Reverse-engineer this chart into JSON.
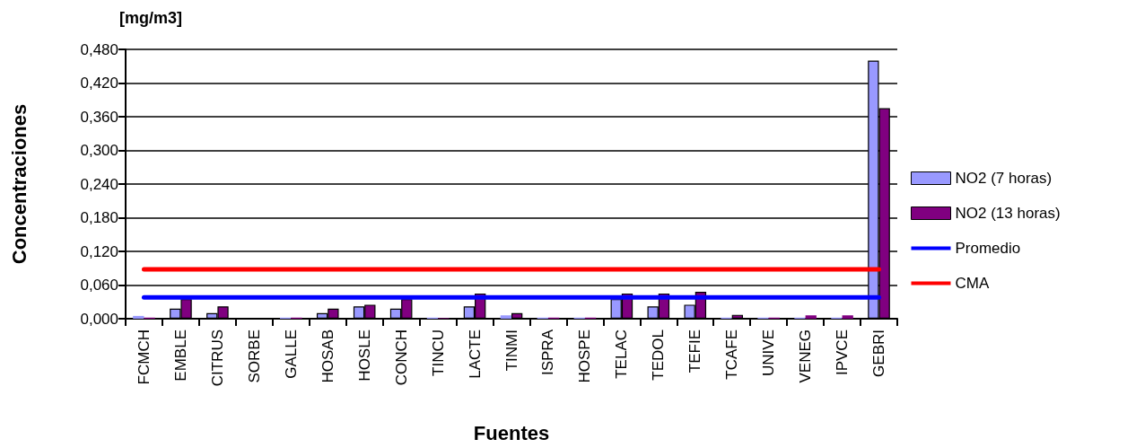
{
  "chart_data": {
    "type": "bar",
    "ylabel": "Concentraciones",
    "xlabel": "Fuentes",
    "annotations": [
      "[mg/m3]"
    ],
    "categories": [
      "FCMCH",
      "EMBLE",
      "CITRUS",
      "SORBE",
      "GALLE",
      "HOSAB",
      "HOSLE",
      "CONCH",
      "TINCU",
      "LACTE",
      "TINMI",
      "ISPRA",
      "HOSPE",
      "TELAC",
      "TEDOL",
      "TEFIE",
      "TCAFE",
      "UNIVE",
      "VENEG",
      "IPVCE",
      "GEBRI"
    ],
    "series": [
      {
        "name": "NO2 (7 horas)",
        "color": "#9999ff",
        "values": [
          0.005,
          0.018,
          0.01,
          0,
          0.002,
          0.01,
          0.022,
          0.018,
          0.002,
          0.022,
          0.006,
          0.002,
          0.002,
          0.035,
          0.022,
          0.025,
          0.002,
          0.002,
          0.002,
          0.002,
          0.46
        ]
      },
      {
        "name": "NO2 (13 horas)",
        "color": "#800080",
        "values": [
          0.002,
          0.035,
          0.022,
          0,
          0.002,
          0.018,
          0.025,
          0.035,
          0.001,
          0.045,
          0.01,
          0.002,
          0.002,
          0.045,
          0.045,
          0.048,
          0.007,
          0.002,
          0.006,
          0.006,
          0.375
        ]
      },
      {
        "name": "Promedio",
        "type": "line",
        "color": "#0000ff",
        "values": [
          0.038,
          0.038,
          0.038,
          0.038,
          0.038,
          0.038,
          0.038,
          0.038,
          0.038,
          0.038,
          0.038,
          0.038,
          0.038,
          0.038,
          0.038,
          0.038,
          0.038,
          0.038,
          0.038,
          0.038,
          0.038
        ]
      },
      {
        "name": "CMA",
        "type": "line",
        "color": "#ff0000",
        "values": [
          0.088,
          0.088,
          0.088,
          0.088,
          0.088,
          0.088,
          0.088,
          0.088,
          0.088,
          0.088,
          0.088,
          0.088,
          0.088,
          0.088,
          0.088,
          0.088,
          0.088,
          0.088,
          0.088,
          0.088,
          0.088
        ]
      }
    ],
    "ylim": [
      0,
      0.48
    ],
    "yticks": [
      {
        "value": 0,
        "label": "0,000"
      },
      {
        "value": 0.06,
        "label": "0,060"
      },
      {
        "value": 0.12,
        "label": "0,120"
      },
      {
        "value": 0.18,
        "label": "0,180"
      },
      {
        "value": 0.24,
        "label": "0,240"
      },
      {
        "value": 0.3,
        "label": "0,300"
      },
      {
        "value": 0.36,
        "label": "0,360"
      },
      {
        "value": 0.42,
        "label": "0,420"
      },
      {
        "value": 0.48,
        "label": "0,480"
      }
    ],
    "grid": "y",
    "legend": "right",
    "marker": "none"
  }
}
